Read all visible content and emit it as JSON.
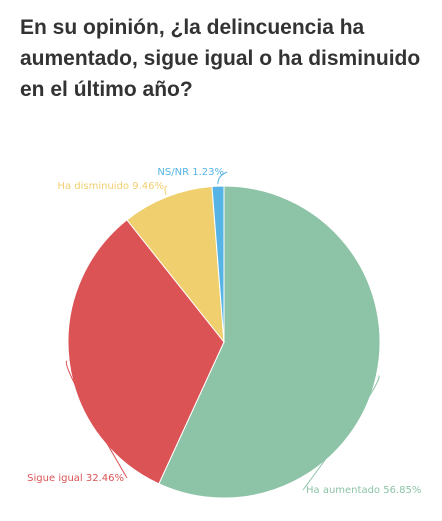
{
  "chart_data": {
    "type": "pie",
    "title": "En su opinión, ¿la delincuencia ha aumentado, sigue igual o ha disminuido en el último año?",
    "slices": [
      {
        "label": "Ha aumentado",
        "value": 56.85,
        "display": "Ha aumentado 56.85%",
        "color": "#8dc3a7"
      },
      {
        "label": "Sigue igual",
        "value": 32.46,
        "display": "Sigue igual 32.46%",
        "color": "#dc5356"
      },
      {
        "label": "Ha disminuido",
        "value": 9.46,
        "display": "Ha disminuido 9.46%",
        "color": "#f0cf6f"
      },
      {
        "label": "NS/NR",
        "value": 1.23,
        "display": "NS/NR 1.23%",
        "color": "#55b4e5"
      }
    ],
    "legend": "none",
    "labels": "outside"
  }
}
